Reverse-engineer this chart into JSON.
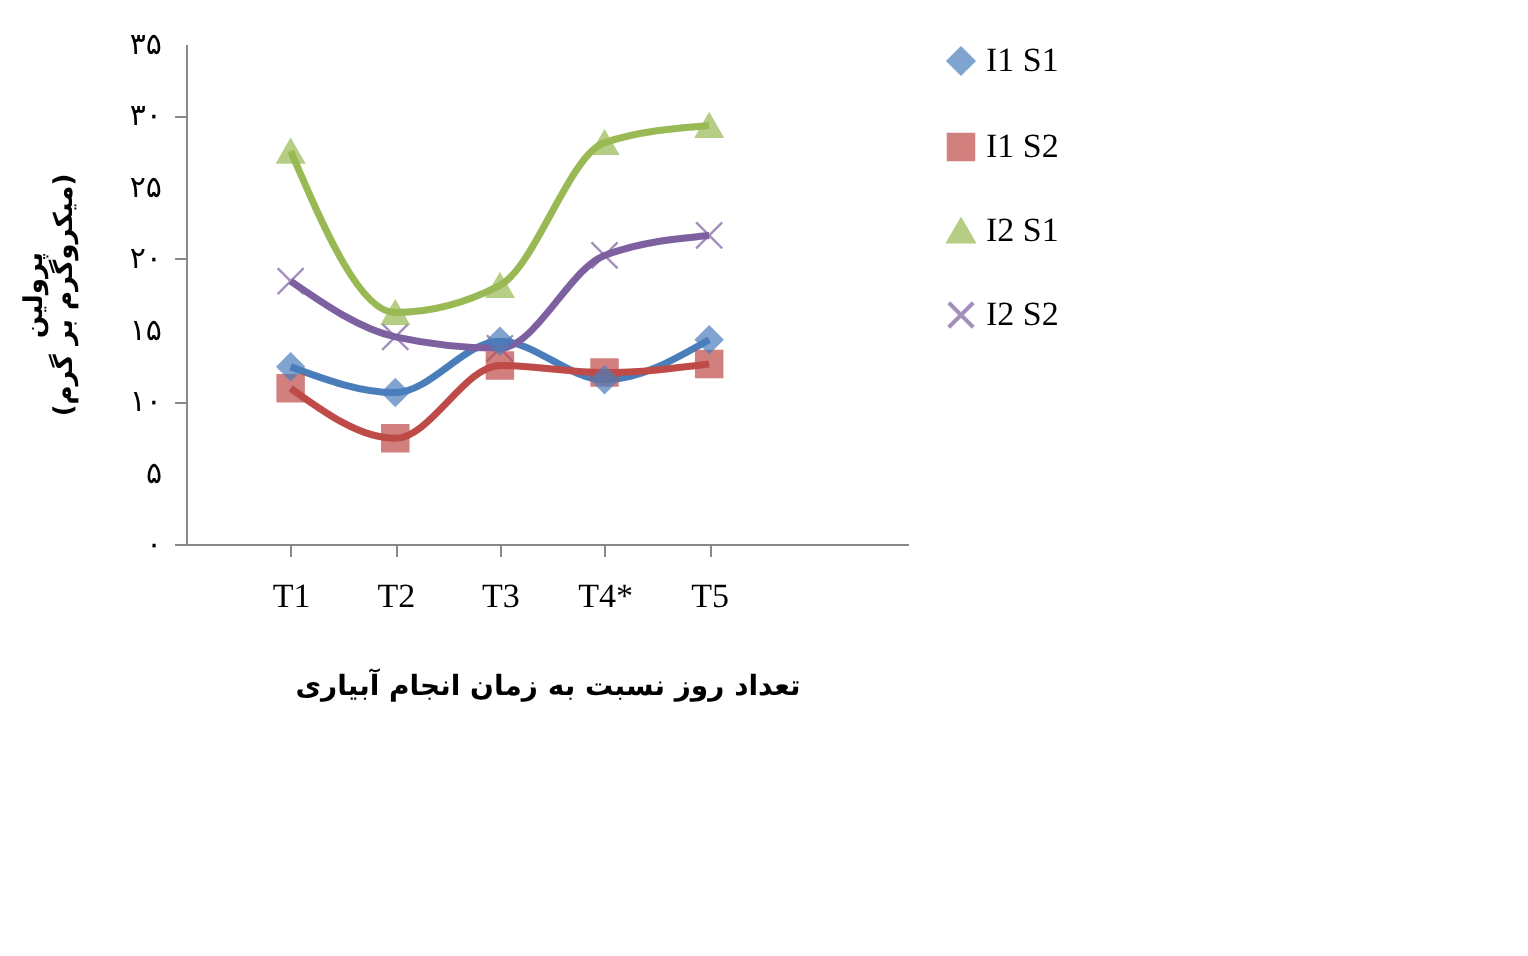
{
  "chart_data": {
    "type": "line",
    "xlabel": "تعداد روز نسبت به زمان انجام آبیاری",
    "ylabel": "پرولین\n(میکروگرم بر گرم)",
    "categories": [
      "T1",
      "T2",
      "T3",
      "T4*",
      "T5"
    ],
    "series": [
      {
        "name": "I1 S1",
        "color": "#4a7ebb",
        "marker": "diamond",
        "values": [
          12.4,
          10.6,
          14.2,
          11.5,
          14.3
        ]
      },
      {
        "name": "I1 S2",
        "color": "#be4b48",
        "marker": "square",
        "values": [
          10.9,
          7.4,
          12.5,
          12.0,
          12.6
        ]
      },
      {
        "name": "I2 S1",
        "color": "#98b954",
        "marker": "triangle",
        "values": [
          27.5,
          16.2,
          18.1,
          28.1,
          29.3
        ]
      },
      {
        "name": "I2 S2",
        "color": "#7d60a0",
        "marker": "cross",
        "values": [
          18.4,
          14.5,
          13.7,
          20.2,
          21.6
        ]
      }
    ],
    "ylim": [
      0,
      35
    ],
    "yticks": [
      {
        "value": 0,
        "label": "۰"
      },
      {
        "value": 5,
        "label": "۵"
      },
      {
        "value": 10,
        "label": "۱۰"
      },
      {
        "value": 15,
        "label": "۱۵"
      },
      {
        "value": 20,
        "label": "۲۰"
      },
      {
        "value": 25,
        "label": "۲۵"
      },
      {
        "value": 30,
        "label": "۳۰"
      },
      {
        "value": 35,
        "label": "۳۵"
      }
    ],
    "grid": false,
    "legend": "right",
    "line_style": "solid"
  }
}
